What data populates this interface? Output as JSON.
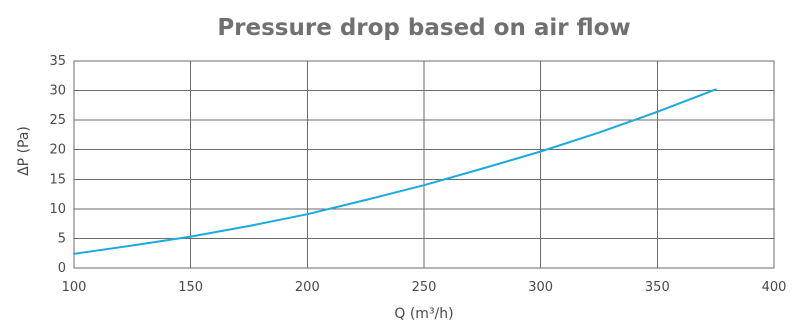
{
  "chart_data": {
    "type": "line",
    "title": "Pressure drop based on air flow",
    "xlabel": "Q (m³/h)",
    "ylabel": "ΔP (Pa)",
    "xlim": [
      100,
      400
    ],
    "ylim": [
      0,
      35
    ],
    "x_ticks": [
      "100",
      "150",
      "200",
      "250",
      "300",
      "350",
      "400"
    ],
    "y_ticks": [
      "0",
      "5",
      "10",
      "15",
      "20",
      "25",
      "30",
      "35"
    ],
    "grid": true,
    "series": [
      {
        "color": "#1ba9e1",
        "x": [
          100,
          125,
          150,
          175,
          200,
          225,
          250,
          275,
          300,
          325,
          350,
          375
        ],
        "y": [
          2.4,
          3.8,
          5.3,
          7.1,
          9.1,
          11.5,
          14.0,
          16.8,
          19.7,
          22.9,
          26.4,
          30.2
        ]
      }
    ]
  }
}
